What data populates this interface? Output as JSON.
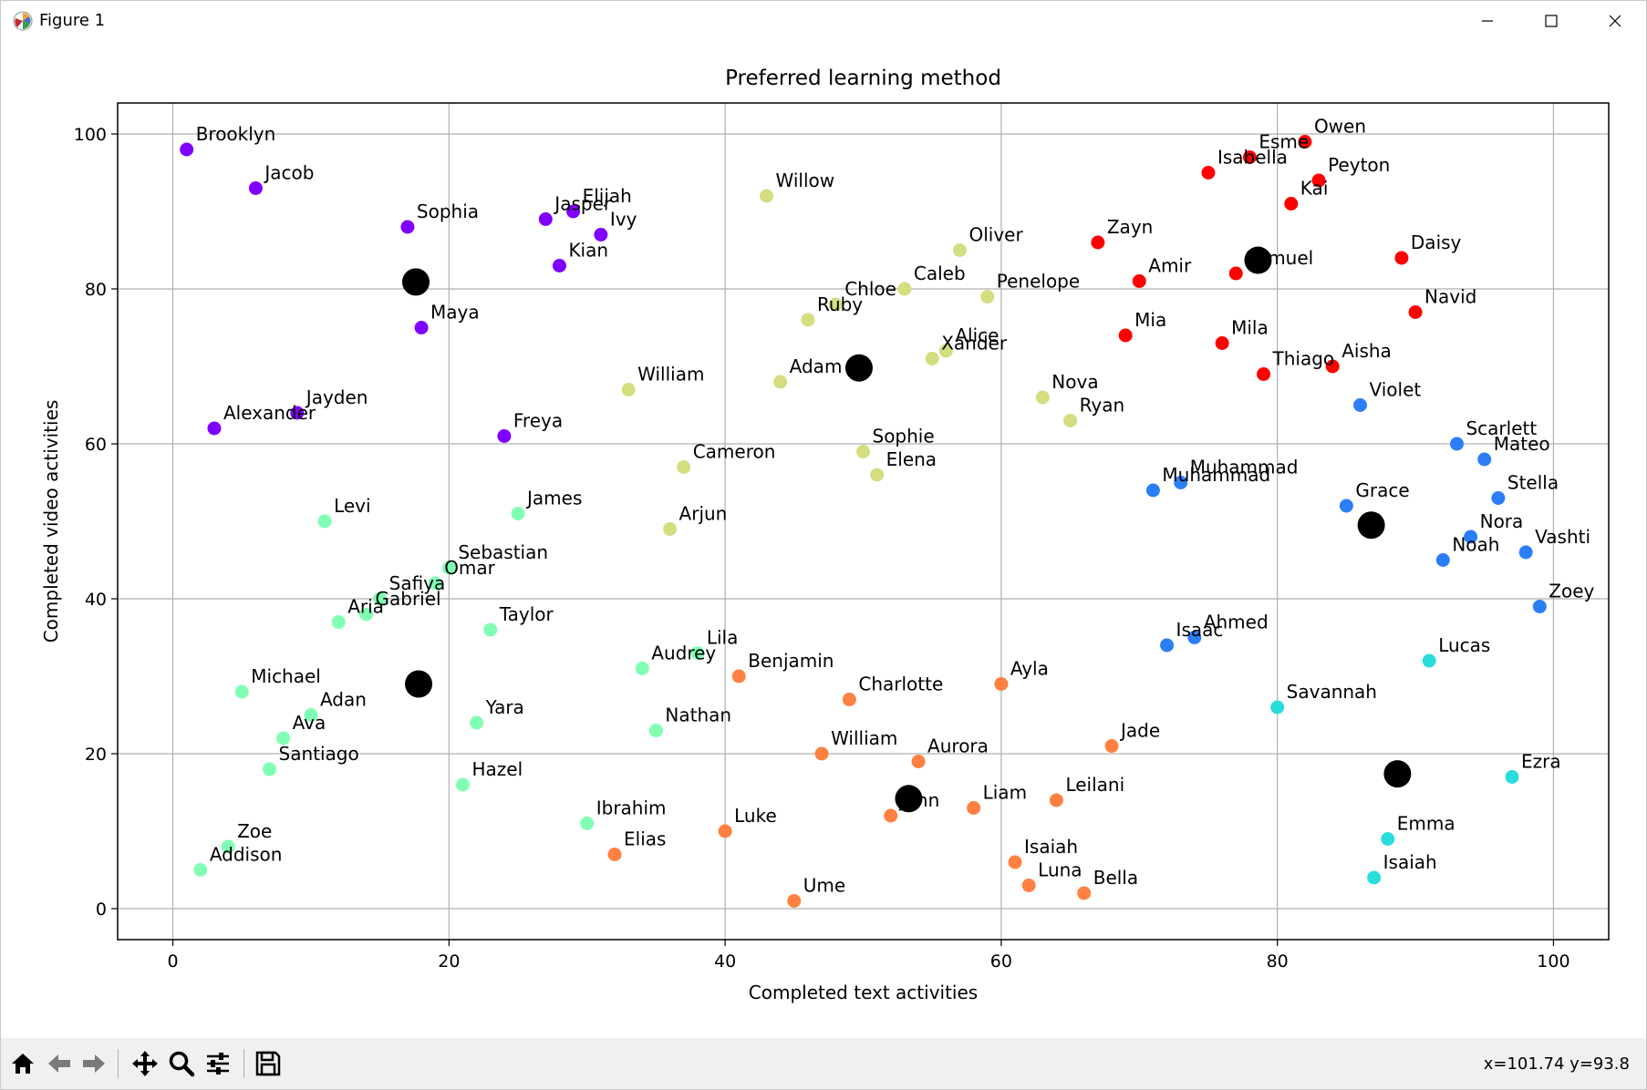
{
  "window": {
    "title": "Figure 1"
  },
  "toolbar": {
    "items": [
      "home-icon",
      "back-icon",
      "forward-icon",
      "pan-icon",
      "zoom-icon",
      "configure-icon",
      "save-icon"
    ],
    "coords": "x=101.74 y=93.8"
  },
  "chart_data": {
    "type": "scatter",
    "title": "Preferred learning method",
    "xlabel": "Completed text activities",
    "ylabel": "Completed video activities",
    "xlim": [
      -4,
      104
    ],
    "ylim": [
      -4,
      104
    ],
    "xticks": [
      0,
      20,
      40,
      60,
      80,
      100
    ],
    "yticks": [
      0,
      20,
      40,
      60,
      80,
      100
    ],
    "grid": true,
    "colors": {
      "purple": "#8000ff",
      "mint": "#80ffb4",
      "olive": "#d4dd80",
      "orange": "#ff8040",
      "red": "#ff0000",
      "blue": "#2c7ef7",
      "cyan": "#2adddd",
      "centroid": "#000000"
    },
    "points": [
      {
        "name": "Brooklyn",
        "x": 1,
        "y": 98,
        "c": "purple"
      },
      {
        "name": "Jacob",
        "x": 6,
        "y": 93,
        "c": "purple"
      },
      {
        "name": "Sophia",
        "x": 17,
        "y": 88,
        "c": "purple"
      },
      {
        "name": "Jasper",
        "x": 27,
        "y": 89,
        "c": "purple"
      },
      {
        "name": "Elijah",
        "x": 29,
        "y": 90,
        "c": "purple"
      },
      {
        "name": "Ivy",
        "x": 31,
        "y": 87,
        "c": "purple"
      },
      {
        "name": "Kian",
        "x": 28,
        "y": 83,
        "c": "purple"
      },
      {
        "name": "Maya",
        "x": 18,
        "y": 75,
        "c": "purple"
      },
      {
        "name": "Jayden",
        "x": 9,
        "y": 64,
        "c": "purple"
      },
      {
        "name": "Alexander",
        "x": 3,
        "y": 62,
        "c": "purple"
      },
      {
        "name": "Freya",
        "x": 24,
        "y": 61,
        "c": "purple"
      },
      {
        "name": "Levi",
        "x": 11,
        "y": 50,
        "c": "mint"
      },
      {
        "name": "James",
        "x": 25,
        "y": 51,
        "c": "mint"
      },
      {
        "name": "Sebastian",
        "x": 20,
        "y": 44,
        "c": "mint"
      },
      {
        "name": "Omar",
        "x": 19,
        "y": 42,
        "c": "mint"
      },
      {
        "name": "Safiya",
        "x": 15,
        "y": 40,
        "c": "mint"
      },
      {
        "name": "Gabriel",
        "x": 14,
        "y": 38,
        "c": "mint"
      },
      {
        "name": "Aria",
        "x": 12,
        "y": 37,
        "c": "mint"
      },
      {
        "name": "Taylor",
        "x": 23,
        "y": 36,
        "c": "mint"
      },
      {
        "name": "Michael",
        "x": 5,
        "y": 28,
        "c": "mint"
      },
      {
        "name": "Adan",
        "x": 10,
        "y": 25,
        "c": "mint"
      },
      {
        "name": "Ava",
        "x": 8,
        "y": 22,
        "c": "mint"
      },
      {
        "name": "Santiago",
        "x": 7,
        "y": 18,
        "c": "mint"
      },
      {
        "name": "Yara",
        "x": 22,
        "y": 24,
        "c": "mint"
      },
      {
        "name": "Hazel",
        "x": 21,
        "y": 16,
        "c": "mint"
      },
      {
        "name": "Zoe",
        "x": 4,
        "y": 8,
        "c": "mint"
      },
      {
        "name": "Addison",
        "x": 2,
        "y": 5,
        "c": "mint"
      },
      {
        "name": "Audrey",
        "x": 34,
        "y": 31,
        "c": "mint"
      },
      {
        "name": "Lila",
        "x": 38,
        "y": 33,
        "c": "mint"
      },
      {
        "name": "Nathan",
        "x": 35,
        "y": 23,
        "c": "mint"
      },
      {
        "name": "Ibrahim",
        "x": 30,
        "y": 11,
        "c": "mint"
      },
      {
        "name": "Willow",
        "x": 43,
        "y": 92,
        "c": "olive"
      },
      {
        "name": "Oliver",
        "x": 57,
        "y": 85,
        "c": "olive"
      },
      {
        "name": "Caleb",
        "x": 53,
        "y": 80,
        "c": "olive"
      },
      {
        "name": "Chloe",
        "x": 48,
        "y": 78,
        "c": "olive"
      },
      {
        "name": "Ruby",
        "x": 46,
        "y": 76,
        "c": "olive"
      },
      {
        "name": "Penelope",
        "x": 59,
        "y": 79,
        "c": "olive"
      },
      {
        "name": "Alice",
        "x": 56,
        "y": 72,
        "c": "olive"
      },
      {
        "name": "Xander",
        "x": 55,
        "y": 71,
        "c": "olive"
      },
      {
        "name": "William",
        "x": 33,
        "y": 67,
        "c": "olive"
      },
      {
        "name": "Adam",
        "x": 44,
        "y": 68,
        "c": "olive"
      },
      {
        "name": "Nova",
        "x": 63,
        "y": 66,
        "c": "olive"
      },
      {
        "name": "Ryan",
        "x": 65,
        "y": 63,
        "c": "olive"
      },
      {
        "name": "Sophie",
        "x": 50,
        "y": 59,
        "c": "olive"
      },
      {
        "name": "Elena",
        "x": 51,
        "y": 56,
        "c": "olive"
      },
      {
        "name": "Cameron",
        "x": 37,
        "y": 57,
        "c": "olive"
      },
      {
        "name": "Arjun",
        "x": 36,
        "y": 49,
        "c": "olive"
      },
      {
        "name": "Benjamin",
        "x": 41,
        "y": 30,
        "c": "orange"
      },
      {
        "name": "Charlotte",
        "x": 49,
        "y": 27,
        "c": "orange"
      },
      {
        "name": "Ayla",
        "x": 60,
        "y": 29,
        "c": "orange"
      },
      {
        "name": "William",
        "x": 47,
        "y": 20,
        "c": "orange"
      },
      {
        "name": "Aurora",
        "x": 54,
        "y": 19,
        "c": "orange"
      },
      {
        "name": "Jade",
        "x": 68,
        "y": 21,
        "c": "orange"
      },
      {
        "name": "John",
        "x": 52,
        "y": 12,
        "c": "orange"
      },
      {
        "name": "Liam",
        "x": 58,
        "y": 13,
        "c": "orange"
      },
      {
        "name": "Leilani",
        "x": 64,
        "y": 14,
        "c": "orange"
      },
      {
        "name": "Luke",
        "x": 40,
        "y": 10,
        "c": "orange"
      },
      {
        "name": "Elias",
        "x": 32,
        "y": 7,
        "c": "orange"
      },
      {
        "name": "Isaiah",
        "x": 61,
        "y": 6,
        "c": "orange"
      },
      {
        "name": "Luna",
        "x": 62,
        "y": 3,
        "c": "orange"
      },
      {
        "name": "Bella",
        "x": 66,
        "y": 2,
        "c": "orange"
      },
      {
        "name": "Ume",
        "x": 45,
        "y": 1,
        "c": "orange"
      },
      {
        "name": "Owen",
        "x": 82,
        "y": 99,
        "c": "red"
      },
      {
        "name": "Esme",
        "x": 78,
        "y": 97,
        "c": "red"
      },
      {
        "name": "Isabella",
        "x": 75,
        "y": 95,
        "c": "red"
      },
      {
        "name": "Peyton",
        "x": 83,
        "y": 94,
        "c": "red"
      },
      {
        "name": "Kai",
        "x": 81,
        "y": 91,
        "c": "red"
      },
      {
        "name": "Zayn",
        "x": 67,
        "y": 86,
        "c": "red"
      },
      {
        "name": "Daisy",
        "x": 89,
        "y": 84,
        "c": "red"
      },
      {
        "name": "Samuel",
        "x": 77,
        "y": 82,
        "c": "red"
      },
      {
        "name": "Amir",
        "x": 70,
        "y": 81,
        "c": "red"
      },
      {
        "name": "Navid",
        "x": 90,
        "y": 77,
        "c": "red"
      },
      {
        "name": "Mia",
        "x": 69,
        "y": 74,
        "c": "red"
      },
      {
        "name": "Mila",
        "x": 76,
        "y": 73,
        "c": "red"
      },
      {
        "name": "Aisha",
        "x": 84,
        "y": 70,
        "c": "red"
      },
      {
        "name": "Thiago",
        "x": 79,
        "y": 69,
        "c": "red"
      },
      {
        "name": "Violet",
        "x": 86,
        "y": 65,
        "c": "blue"
      },
      {
        "name": "Scarlett",
        "x": 93,
        "y": 60,
        "c": "blue"
      },
      {
        "name": "Mateo",
        "x": 95,
        "y": 58,
        "c": "blue"
      },
      {
        "name": "Muhammad",
        "x": 73,
        "y": 55,
        "c": "blue"
      },
      {
        "name": "Muhammad",
        "x": 71,
        "y": 54,
        "c": "blue"
      },
      {
        "name": "Stella",
        "x": 96,
        "y": 53,
        "c": "blue"
      },
      {
        "name": "Grace",
        "x": 85,
        "y": 52,
        "c": "blue"
      },
      {
        "name": "Nora",
        "x": 94,
        "y": 48,
        "c": "blue"
      },
      {
        "name": "Vashti",
        "x": 98,
        "y": 46,
        "c": "blue"
      },
      {
        "name": "Noah",
        "x": 92,
        "y": 45,
        "c": "blue"
      },
      {
        "name": "Zoey",
        "x": 99,
        "y": 39,
        "c": "blue"
      },
      {
        "name": "Ahmed",
        "x": 74,
        "y": 35,
        "c": "blue"
      },
      {
        "name": "Isaac",
        "x": 72,
        "y": 34,
        "c": "blue"
      },
      {
        "name": "Lucas",
        "x": 91,
        "y": 32,
        "c": "cyan"
      },
      {
        "name": "Savannah",
        "x": 80,
        "y": 26,
        "c": "cyan"
      },
      {
        "name": "Ezra",
        "x": 97,
        "y": 17,
        "c": "cyan"
      },
      {
        "name": "Emma",
        "x": 88,
        "y": 9,
        "c": "cyan"
      },
      {
        "name": "Isaiah",
        "x": 87,
        "y": 4,
        "c": "cyan"
      }
    ],
    "centroids": [
      {
        "x": 17.6,
        "y": 80.9
      },
      {
        "x": 17.8,
        "y": 29
      },
      {
        "x": 49.7,
        "y": 69.8
      },
      {
        "x": 53.3,
        "y": 14.2
      },
      {
        "x": 78.6,
        "y": 83.7
      },
      {
        "x": 86.8,
        "y": 49.5
      },
      {
        "x": 88.7,
        "y": 17.4
      }
    ]
  }
}
